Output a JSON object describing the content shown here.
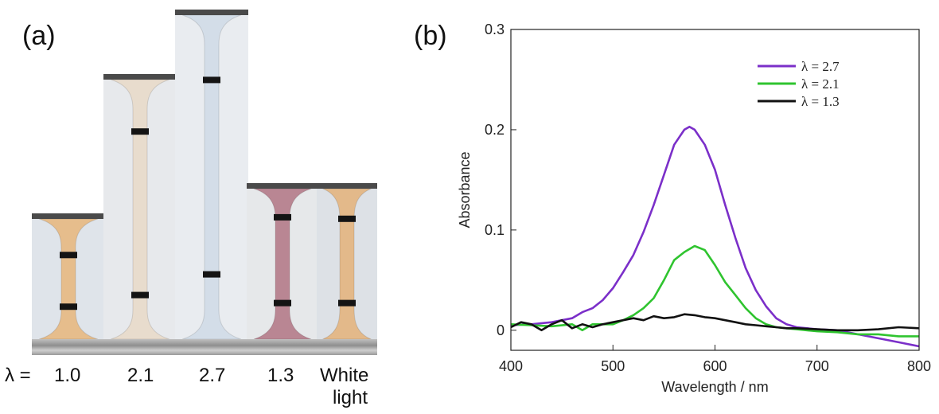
{
  "panel_a": {
    "label": "(a)",
    "lambda_prefix": "λ =",
    "samples": [
      {
        "lambda": "1.0",
        "color": "#e6bd8c",
        "background": "#dfe4ea"
      },
      {
        "lambda": "2.1",
        "color": "#e8dccd",
        "background": "#e7e9ec"
      },
      {
        "lambda": "2.7",
        "color": "#d3dde8",
        "background": "#e9ecf0"
      },
      {
        "lambda": "1.3",
        "color": "#b98693",
        "background": "#e6e8ea"
      },
      {
        "lambda": "White",
        "lambda_line2": "light",
        "color": "#e3b98a",
        "background": "#dde1e6"
      }
    ]
  },
  "panel_b": {
    "label": "(b)",
    "chart_data": {
      "type": "line",
      "xlabel": "Wavelength / nm",
      "ylabel": "Absorbance",
      "xlim": [
        400,
        800
      ],
      "ylim": [
        -0.02,
        0.3
      ],
      "xticks": [
        400,
        500,
        600,
        700,
        800
      ],
      "xtick_labels": [
        "400",
        "500",
        "600",
        "700",
        "800"
      ],
      "yticks": [
        0,
        0.1,
        0.2,
        0.3
      ],
      "ytick_labels": [
        "0",
        "0.1",
        "0.2",
        "0.3"
      ],
      "legend_position": "top-right",
      "series": [
        {
          "name": "λ = 2.7",
          "color": "#7b2fc9",
          "x": [
            400,
            420,
            440,
            460,
            470,
            480,
            490,
            500,
            510,
            520,
            530,
            540,
            550,
            560,
            570,
            575,
            580,
            590,
            600,
            610,
            620,
            630,
            640,
            650,
            660,
            670,
            680,
            700,
            720,
            740,
            760,
            780,
            800
          ],
          "y": [
            0.005,
            0.006,
            0.008,
            0.012,
            0.018,
            0.022,
            0.03,
            0.042,
            0.058,
            0.075,
            0.098,
            0.125,
            0.155,
            0.185,
            0.2,
            0.203,
            0.2,
            0.185,
            0.16,
            0.125,
            0.092,
            0.062,
            0.04,
            0.024,
            0.012,
            0.006,
            0.003,
            0.001,
            0.0,
            -0.004,
            -0.008,
            -0.012,
            -0.016
          ]
        },
        {
          "name": "λ = 2.1",
          "color": "#2fc42f",
          "x": [
            400,
            420,
            440,
            460,
            470,
            480,
            490,
            500,
            510,
            520,
            530,
            540,
            550,
            560,
            570,
            580,
            590,
            600,
            610,
            620,
            630,
            640,
            650,
            660,
            670,
            680,
            700,
            720,
            740,
            760,
            780,
            800
          ],
          "y": [
            0.006,
            0.005,
            0.004,
            0.006,
            0.0,
            0.006,
            0.006,
            0.006,
            0.01,
            0.015,
            0.022,
            0.032,
            0.05,
            0.07,
            0.078,
            0.084,
            0.08,
            0.065,
            0.048,
            0.035,
            0.022,
            0.012,
            0.006,
            0.003,
            0.002,
            0.001,
            -0.001,
            -0.002,
            -0.004,
            -0.004,
            -0.006,
            -0.006
          ]
        },
        {
          "name": "λ = 1.3",
          "color": "#111111",
          "x": [
            400,
            410,
            420,
            430,
            440,
            450,
            460,
            470,
            480,
            490,
            500,
            510,
            520,
            530,
            540,
            550,
            560,
            570,
            580,
            590,
            600,
            610,
            620,
            630,
            640,
            650,
            660,
            670,
            680,
            700,
            720,
            740,
            760,
            780,
            800
          ],
          "y": [
            0.003,
            0.008,
            0.006,
            0.0,
            0.006,
            0.01,
            0.002,
            0.006,
            0.003,
            0.006,
            0.008,
            0.01,
            0.012,
            0.01,
            0.014,
            0.012,
            0.013,
            0.016,
            0.015,
            0.013,
            0.012,
            0.01,
            0.008,
            0.006,
            0.005,
            0.004,
            0.003,
            0.002,
            0.002,
            0.001,
            0.0,
            0.0,
            0.001,
            0.003,
            0.002
          ]
        }
      ]
    }
  }
}
